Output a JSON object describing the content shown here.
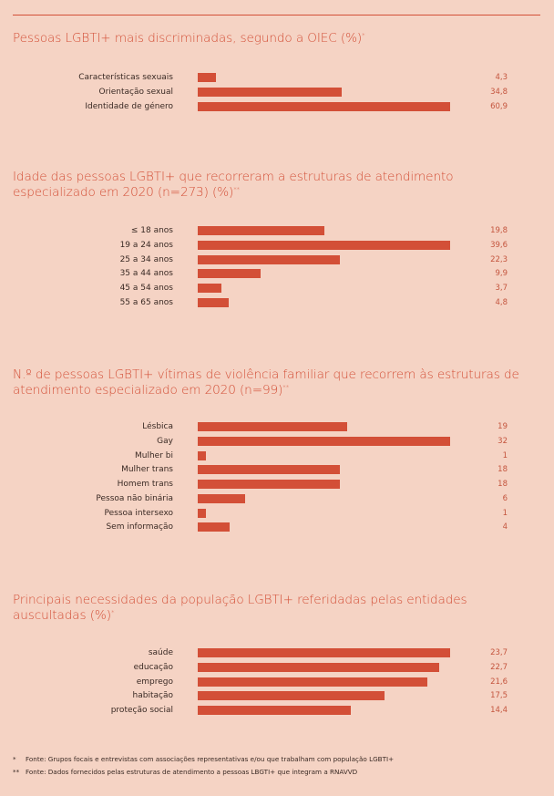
{
  "chart_data": [
    {
      "type": "bar",
      "orientation": "horizontal",
      "title": "Pessoas LGBTI+ mais discriminadas, segundo a OIEC (%)",
      "title_mark": "*",
      "categories": [
        "Características sexuais",
        "Orientação sexual",
        "Identidade de género"
      ],
      "values": [
        4.3,
        34.8,
        60.9
      ],
      "value_labels": [
        "4,3",
        "34,8",
        "60,9"
      ]
    },
    {
      "type": "bar",
      "orientation": "horizontal",
      "title": "Idade das pessoas LGBTI+ que recorreram a estruturas de atendimento especializado em 2020 (n=273) (%)",
      "title_mark": "**",
      "categories": [
        "≤ 18 anos",
        "19 a 24 anos",
        "25 a 34 anos",
        "35 a 44 anos",
        "45 a 54 anos",
        "55 a 65 anos"
      ],
      "values": [
        19.8,
        39.6,
        22.3,
        9.9,
        3.7,
        4.8
      ],
      "value_labels": [
        "19,8",
        "39,6",
        "22,3",
        "9,9",
        "3,7",
        "4,8"
      ]
    },
    {
      "type": "bar",
      "orientation": "horizontal",
      "title": "N.º de pessoas LGBTI+ vítimas de violência familiar que recorrem às estruturas de atendimento especializado em 2020 (n=99)",
      "title_mark": "**",
      "categories": [
        "Lésbica",
        "Gay",
        "Mulher bi",
        "Mulher trans",
        "Homem trans",
        "Pessoa não binária",
        "Pessoa intersexo",
        "Sem informação"
      ],
      "values": [
        19,
        32,
        1,
        18,
        18,
        6,
        1,
        4
      ],
      "value_labels": [
        "19",
        "32",
        "1",
        "18",
        "18",
        "6",
        "1",
        "4"
      ]
    },
    {
      "type": "bar",
      "orientation": "horizontal",
      "title": "Principais necessidades da população LGBTI+ referidadas pelas entidades auscultadas (%)",
      "title_mark": "*",
      "categories": [
        "saúde",
        "educação",
        "emprego",
        "habitação",
        "proteção social"
      ],
      "values": [
        23.7,
        22.7,
        21.6,
        17.5,
        14.4
      ],
      "value_labels": [
        "23,7",
        "22,7",
        "21,6",
        "17,5",
        "14,4"
      ]
    }
  ],
  "footnotes": [
    {
      "mark": "*",
      "text": "Fonte: Grupos focais e entrevistas com associações representativas e/ou que trabalham com população LGBTI+"
    },
    {
      "mark": "**",
      "text": "Fonte: Dados fornecidos pelas estruturas de atendimento a pessoas LBGTI+ que integram a RNAVVD"
    }
  ],
  "colors": {
    "background": "#f5d3c4",
    "accent": "#d34f37",
    "text": "#3a2a24"
  }
}
